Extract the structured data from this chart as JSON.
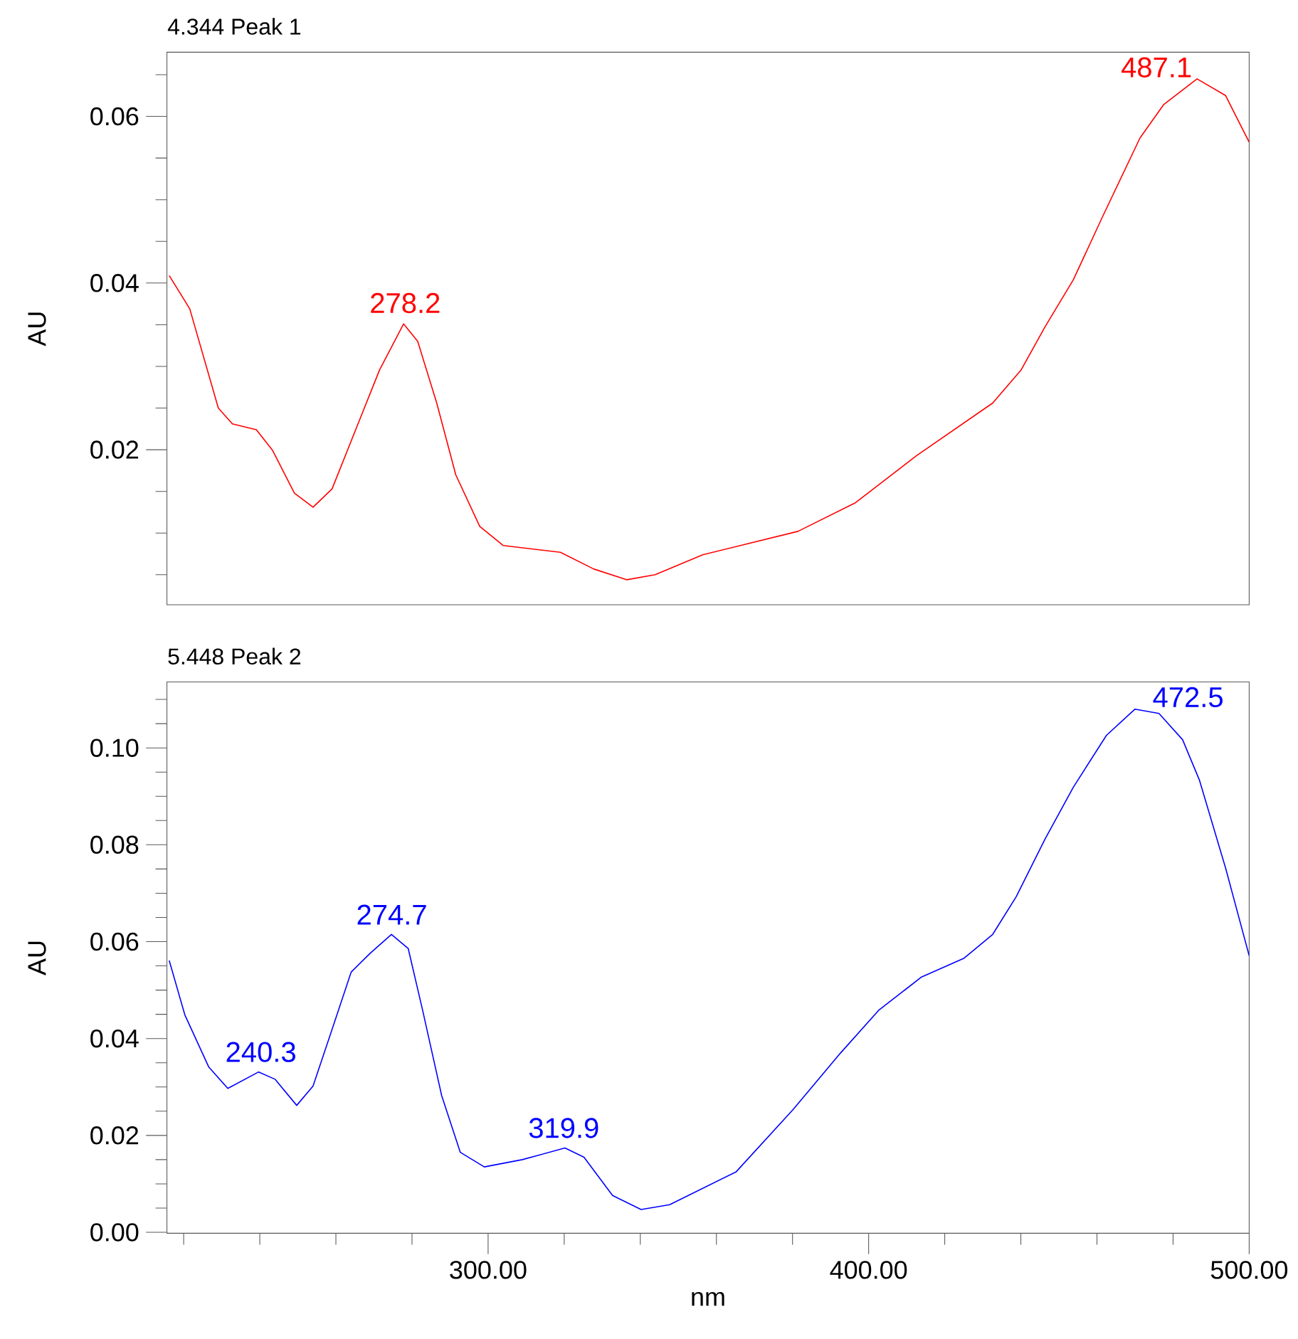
{
  "chart_data": [
    {
      "type": "line",
      "title": "4.344 Peak 1",
      "ylabel": "AU",
      "x": [
        216.2,
        221.6,
        229.1,
        232.8,
        239.1,
        243.4,
        249.1,
        254.0,
        259.0,
        266.5,
        271.5,
        277.8,
        281.5,
        286.5,
        291.5,
        297.8,
        304.0,
        319.0,
        327.7,
        336.4,
        343.9,
        356.4,
        381.4,
        396.4,
        412.6,
        432.6,
        440.1,
        446.3,
        453.8,
        461.3,
        471.3,
        477.5,
        486.3,
        493.8,
        500.0
      ],
      "series": [
        {
          "color": "#ff0000",
          "values": [
            0.0409,
            0.0369,
            0.025,
            0.0231,
            0.0224,
            0.0199,
            0.0148,
            0.0131,
            0.0153,
            0.0239,
            0.0296,
            0.0351,
            0.033,
            0.0256,
            0.017,
            0.0108,
            0.0085,
            0.0077,
            0.0057,
            0.0044,
            0.005,
            0.0074,
            0.0102,
            0.0136,
            0.0193,
            0.0256,
            0.0296,
            0.0347,
            0.0404,
            0.0478,
            0.0574,
            0.0614,
            0.0645,
            0.0625,
            0.0569
          ]
        }
      ],
      "xlim": [
        215.6,
        500
      ],
      "ylim": [
        0.0014,
        0.0677
      ],
      "yticks": [
        {
          "value": 0.005,
          "label": null
        },
        {
          "value": 0.01,
          "label": null
        },
        {
          "value": 0.015,
          "label": null
        },
        0.02,
        {
          "value": 0.025,
          "label": null
        },
        {
          "value": 0.03,
          "label": null
        },
        {
          "value": 0.035,
          "label": null
        },
        0.04,
        {
          "value": 0.045,
          "label": null
        },
        {
          "value": 0.05,
          "label": null
        },
        {
          "value": 0.055,
          "label": null
        },
        0.06,
        {
          "value": 0.065,
          "label": null
        }
      ],
      "tick_labels": "y",
      "annotations": [
        {
          "text": "278.2",
          "x": 278.2,
          "y": 0.0352
        },
        {
          "text": "487.1",
          "x": 487.1,
          "y": 0.0645
        }
      ]
    },
    {
      "type": "line",
      "title": "5.448 Peak 2",
      "xlabel": "nm",
      "ylabel": "AU",
      "x": [
        216.2,
        220.3,
        226.6,
        231.6,
        239.7,
        244.0,
        249.7,
        254.0,
        259.0,
        264.0,
        269.0,
        274.6,
        279.0,
        282.8,
        287.8,
        292.7,
        299.0,
        309.0,
        320.2,
        325.2,
        332.7,
        340.2,
        347.7,
        365.2,
        380.1,
        392.6,
        402.6,
        413.9,
        425.1,
        432.6,
        438.8,
        446.3,
        453.8,
        462.5,
        470.0,
        476.3,
        482.5,
        486.9,
        493.8,
        500.0
      ],
      "series": [
        {
          "color": "#0000ff",
          "values": [
            0.0561,
            0.0449,
            0.0341,
            0.0297,
            0.0331,
            0.0316,
            0.0262,
            0.0302,
            0.0419,
            0.0537,
            0.0576,
            0.0615,
            0.0586,
            0.0458,
            0.0282,
            0.0165,
            0.0135,
            0.015,
            0.0174,
            0.0155,
            0.0076,
            0.0047,
            0.0057,
            0.0125,
            0.0253,
            0.037,
            0.0458,
            0.0527,
            0.0566,
            0.0615,
            0.0693,
            0.0811,
            0.0919,
            0.1026,
            0.108,
            0.1071,
            0.1017,
            0.0934,
            0.0752,
            0.0571
          ]
        }
      ],
      "xlim": [
        215.6,
        500
      ],
      "ylim": [
        -0.0002,
        0.1136
      ],
      "xticks": [
        {
          "value": 220,
          "label": null
        },
        {
          "value": 240,
          "label": null
        },
        {
          "value": 260,
          "label": null
        },
        {
          "value": 280,
          "label": null
        },
        {
          "value": 300,
          "label": "300.00"
        },
        {
          "value": 320,
          "label": null
        },
        {
          "value": 340,
          "label": null
        },
        {
          "value": 360,
          "label": null
        },
        {
          "value": 380,
          "label": null
        },
        {
          "value": 400,
          "label": "400.00"
        },
        {
          "value": 420,
          "label": null
        },
        {
          "value": 440,
          "label": null
        },
        {
          "value": 460,
          "label": null
        },
        {
          "value": 480,
          "label": null
        },
        {
          "value": 500,
          "label": "500.00"
        }
      ],
      "yticks": [
        {
          "value": 0,
          "label": "0.00"
        },
        {
          "value": 0.005,
          "label": null
        },
        {
          "value": 0.01,
          "label": null
        },
        {
          "value": 0.015,
          "label": null
        },
        0.02,
        {
          "value": 0.025,
          "label": null
        },
        {
          "value": 0.03,
          "label": null
        },
        {
          "value": 0.035,
          "label": null
        },
        0.04,
        {
          "value": 0.045,
          "label": null
        },
        {
          "value": 0.05,
          "label": null
        },
        {
          "value": 0.055,
          "label": null
        },
        0.06,
        {
          "value": 0.065,
          "label": null
        },
        {
          "value": 0.07,
          "label": null
        },
        {
          "value": 0.075,
          "label": null
        },
        0.08,
        {
          "value": 0.085,
          "label": null
        },
        {
          "value": 0.09,
          "label": null
        },
        {
          "value": 0.095,
          "label": null
        },
        {
          "value": 0.1,
          "label": "0.10"
        },
        {
          "value": 0.105,
          "label": null
        },
        {
          "value": 0.11,
          "label": null
        }
      ],
      "annotations": [
        {
          "text": "240.3",
          "x": 240.3,
          "y": 0.0331
        },
        {
          "text": "274.7",
          "x": 274.7,
          "y": 0.0615
        },
        {
          "text": "319.9",
          "x": 319.9,
          "y": 0.0174
        },
        {
          "text": "472.5",
          "x": 472.5,
          "y": 0.108
        }
      ]
    }
  ]
}
